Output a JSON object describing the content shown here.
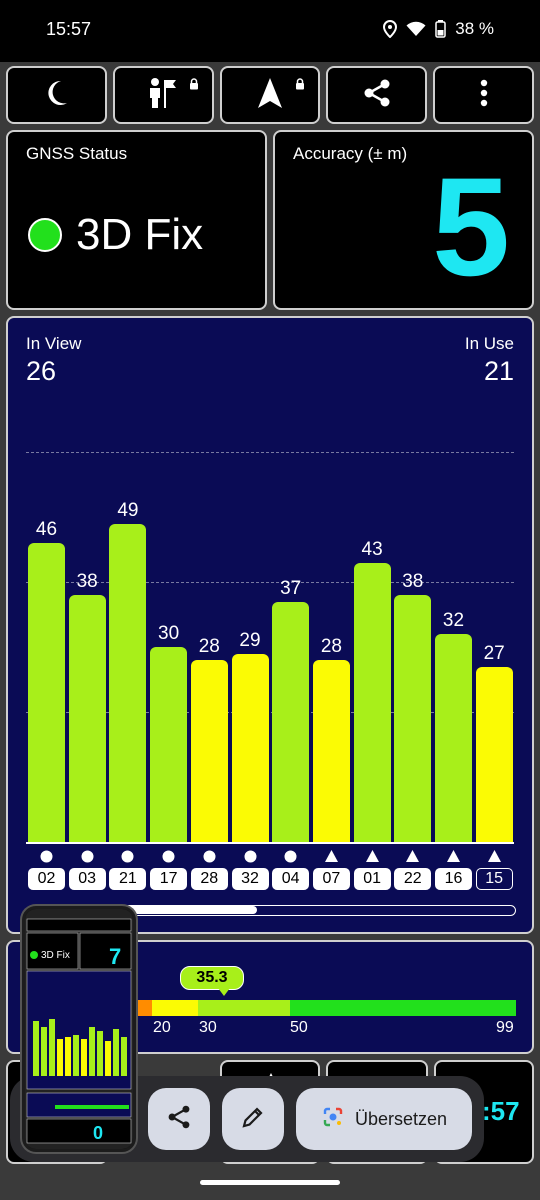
{
  "status_bar": {
    "time": "15:57",
    "battery": "38 %"
  },
  "toolbar": {
    "buttons": [
      {
        "icon": "moon-icon"
      },
      {
        "icon": "person-flag-icon",
        "locked": true
      },
      {
        "icon": "navigation-arrow-icon",
        "locked": true
      },
      {
        "icon": "share-icon"
      },
      {
        "icon": "more-vert-icon"
      }
    ]
  },
  "gnss": {
    "title": "GNSS Status",
    "fix_text": "3D Fix",
    "fix_color": "#22e01c"
  },
  "accuracy": {
    "title": "Accuracy (± m)",
    "value": "5",
    "color": "#1ee7f2"
  },
  "satellites": {
    "in_view_label": "In View",
    "in_view": "26",
    "in_use_label": "In Use",
    "in_use": "21"
  },
  "chart_data": {
    "type": "bar",
    "categories": [
      "02",
      "03",
      "21",
      "17",
      "28",
      "32",
      "04",
      "07",
      "01",
      "22",
      "16",
      "15"
    ],
    "values": [
      46,
      38,
      49,
      30,
      28,
      29,
      37,
      28,
      43,
      38,
      32,
      27
    ],
    "symbols": [
      "circle",
      "circle",
      "circle",
      "circle",
      "circle",
      "circle",
      "circle",
      "triangle",
      "triangle",
      "triangle",
      "triangle",
      "triangle"
    ],
    "in_use": [
      true,
      true,
      true,
      true,
      true,
      true,
      true,
      true,
      true,
      true,
      true,
      false
    ],
    "ylim": [
      0,
      60
    ],
    "gridlines": [
      20,
      40,
      60
    ],
    "colors": {
      "strong": "#a8ef1a",
      "weak": "#fbfb04"
    },
    "threshold": 30
  },
  "snr": {
    "average": "35.3",
    "ticks": [
      "20",
      "30",
      "50",
      "99"
    ],
    "colors": [
      "#f2351a",
      "#ff8c00",
      "#fbfb04",
      "#a8ef1a",
      "#22e01c"
    ]
  },
  "overlay": {
    "translate_label": "Übersetzen",
    "clock": ":57"
  }
}
